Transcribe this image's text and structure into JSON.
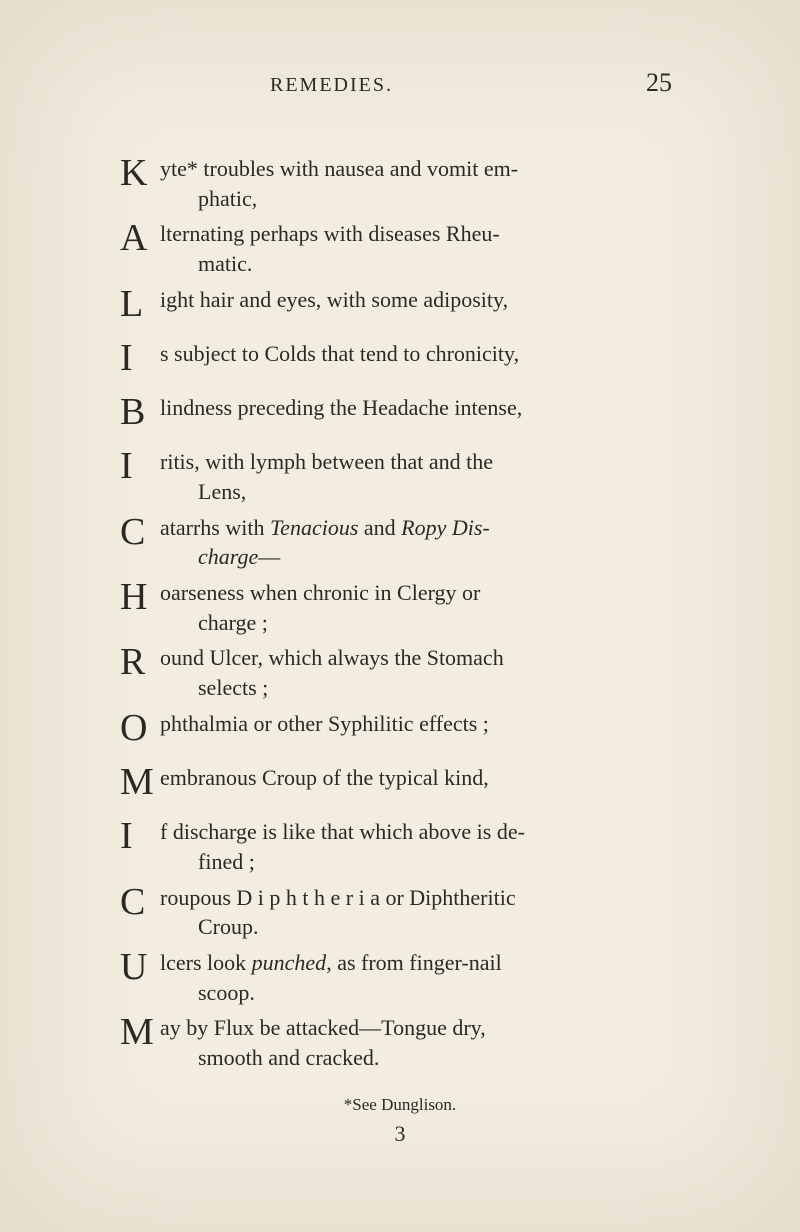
{
  "header": {
    "running_title": "REMEDIES.",
    "page_number": "25"
  },
  "entries": [
    {
      "cap": "K",
      "line1": "yte* troubles with nausea and vomit em-",
      "line2": "phatic,",
      "spacing": "tight"
    },
    {
      "cap": "A",
      "line1": "lternating perhaps with diseases Rheu-",
      "line2": "matic.",
      "spacing": "tight"
    },
    {
      "cap": "L",
      "line1": "ight hair and eyes, with some adiposity,",
      "spacing": "wide"
    },
    {
      "cap": "I",
      "line1": "s subject to Colds that tend to chronicity,",
      "spacing": "wide"
    },
    {
      "cap": "B",
      "line1": "lindness preceding the Headache intense,",
      "spacing": "wide"
    },
    {
      "cap": "I",
      "line1": "ritis, with lymph between that and the",
      "line2": "Lens,",
      "spacing": "tight"
    },
    {
      "cap": "C",
      "line1": "atarrhs with <em>Tenacious</em> and <em>Ropy Dis-</em>",
      "line2": "<em>charge</em>—",
      "spacing": "tight"
    },
    {
      "cap": "H",
      "line1": "oarseness when chronic in Clergy or",
      "line2": "charge ;",
      "spacing": "tight"
    },
    {
      "cap": "R",
      "line1": "ound Ulcer, which always the Stomach",
      "line2": "selects ;",
      "spacing": "tight"
    },
    {
      "cap": "O",
      "line1": "phthalmia or other Syphilitic effects ;",
      "spacing": "wide"
    },
    {
      "cap": "M",
      "line1": "embranous Croup of the typical kind,",
      "spacing": "wide"
    },
    {
      "cap": "I",
      "line1": "f discharge is like that which above is de-",
      "line2": "fined ;",
      "spacing": "tight"
    },
    {
      "cap": "C",
      "line1": "roupous D i p h t h e r i a or Diphtheritic",
      "line2": "Croup.",
      "spacing": "tight"
    },
    {
      "cap": "U",
      "line1": "lcers look <em>punched</em>, as from finger-nail",
      "line2": "scoop.",
      "spacing": "tight"
    },
    {
      "cap": "M",
      "line1": "ay by Flux be attacked—Tongue dry,",
      "line2": "smooth and cracked.",
      "spacing": "tight"
    }
  ],
  "footnote": "*See Dunglison.",
  "signature": "3"
}
